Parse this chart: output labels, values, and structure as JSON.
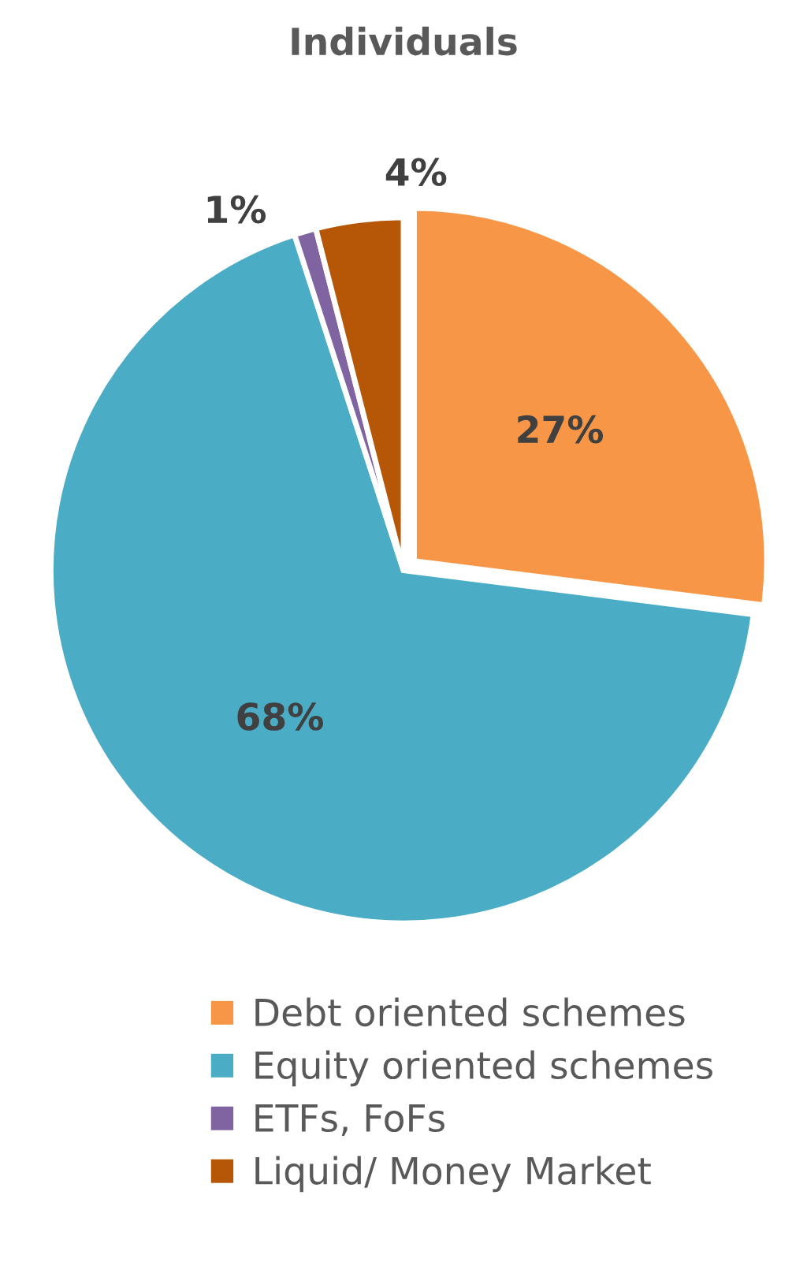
{
  "chart_data": {
    "type": "pie",
    "title": "Individuals",
    "categories": [
      "Debt oriented schemes",
      "Equity oriented schemes",
      "ETFs, FoFs",
      "Liquid/ Money Market"
    ],
    "values": [
      27,
      68,
      1,
      4
    ],
    "colors": [
      "#f79646",
      "#4bacc6",
      "#8064a2",
      "#b65708"
    ],
    "value_labels": [
      "27%",
      "68%",
      "1%",
      "4%"
    ],
    "legend": "bottom"
  }
}
